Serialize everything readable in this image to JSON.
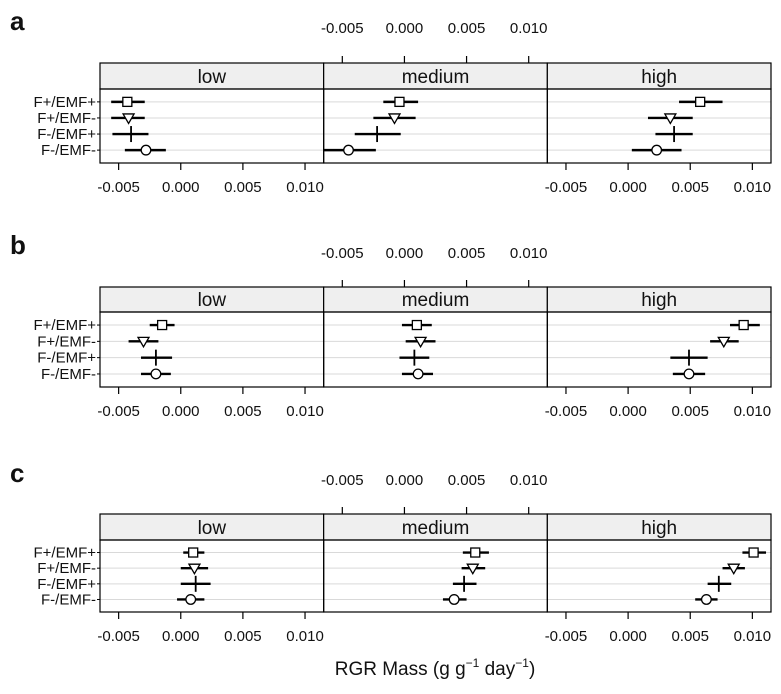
{
  "figure": {
    "xlabel": "RGR Mass (g g",
    "xlabel_sup1": "−1",
    "xlabel_mid": " day",
    "xlabel_sup2": "−1",
    "xlabel_end": ")",
    "colors": {
      "strip_bg": "#efefef",
      "frame": "#000000",
      "guide": "#d9d9d9",
      "mark": "#000000"
    }
  },
  "chart_data": [
    {
      "panel_label": "a",
      "type": "dotplot",
      "categories": [
        "F+/EMF+",
        "F+/EMF-",
        "F-/EMF+",
        "F-/EMF-"
      ],
      "symbols": [
        "square",
        "triangle-down",
        "plus",
        "circle"
      ],
      "xlim": [
        -0.0065,
        0.0115
      ],
      "ticks": [
        -0.005,
        0.0,
        0.005,
        0.01
      ],
      "tick_labels": [
        "-0.005",
        "0.000",
        "0.005",
        "0.010"
      ],
      "panels": [
        {
          "title": "low",
          "points": [
            {
              "category": "F+/EMF+",
              "value": -0.0043,
              "low": -0.0056,
              "high": -0.0029
            },
            {
              "category": "F+/EMF-",
              "value": -0.0042,
              "low": -0.0056,
              "high": -0.0029
            },
            {
              "category": "F-/EMF+",
              "value": -0.004,
              "low": -0.0055,
              "high": -0.0026
            },
            {
              "category": "F-/EMF-",
              "value": -0.0028,
              "low": -0.0045,
              "high": -0.0012
            }
          ]
        },
        {
          "title": "medium",
          "points": [
            {
              "category": "F+/EMF+",
              "value": -0.0004,
              "low": -0.0017,
              "high": 0.0011
            },
            {
              "category": "F+/EMF-",
              "value": -0.0008,
              "low": -0.0025,
              "high": 0.0009
            },
            {
              "category": "F-/EMF+",
              "value": -0.0022,
              "low": -0.004,
              "high": -0.0003
            },
            {
              "category": "F-/EMF-",
              "value": -0.0045,
              "low": -0.0065,
              "high": -0.0023
            }
          ]
        },
        {
          "title": "high",
          "points": [
            {
              "category": "F+/EMF+",
              "value": 0.0058,
              "low": 0.0041,
              "high": 0.0076
            },
            {
              "category": "F+/EMF-",
              "value": 0.0034,
              "low": 0.0016,
              "high": 0.0052
            },
            {
              "category": "F-/EMF+",
              "value": 0.0037,
              "low": 0.0022,
              "high": 0.0052
            },
            {
              "category": "F-/EMF-",
              "value": 0.0023,
              "low": 0.0003,
              "high": 0.0043
            }
          ]
        }
      ]
    },
    {
      "panel_label": "b",
      "type": "dotplot",
      "categories": [
        "F+/EMF+",
        "F+/EMF-",
        "F-/EMF+",
        "F-/EMF-"
      ],
      "symbols": [
        "square",
        "triangle-down",
        "plus",
        "circle"
      ],
      "xlim": [
        -0.0065,
        0.0115
      ],
      "ticks": [
        -0.005,
        0.0,
        0.005,
        0.01
      ],
      "tick_labels": [
        "-0.005",
        "0.000",
        "0.005",
        "0.010"
      ],
      "panels": [
        {
          "title": "low",
          "points": [
            {
              "category": "F+/EMF+",
              "value": -0.0015,
              "low": -0.0025,
              "high": -0.0005
            },
            {
              "category": "F+/EMF-",
              "value": -0.003,
              "low": -0.0042,
              "high": -0.0018
            },
            {
              "category": "F-/EMF+",
              "value": -0.002,
              "low": -0.0032,
              "high": -0.0007
            },
            {
              "category": "F-/EMF-",
              "value": -0.002,
              "low": -0.0032,
              "high": -0.0008
            }
          ]
        },
        {
          "title": "medium",
          "points": [
            {
              "category": "F+/EMF+",
              "value": 0.001,
              "low": -0.0002,
              "high": 0.0022
            },
            {
              "category": "F+/EMF-",
              "value": 0.0013,
              "low": 0.0001,
              "high": 0.0025
            },
            {
              "category": "F-/EMF+",
              "value": 0.0008,
              "low": -0.0004,
              "high": 0.002
            },
            {
              "category": "F-/EMF-",
              "value": 0.0011,
              "low": -0.0002,
              "high": 0.0023
            }
          ]
        },
        {
          "title": "high",
          "points": [
            {
              "category": "F+/EMF+",
              "value": 0.0093,
              "low": 0.0082,
              "high": 0.0106
            },
            {
              "category": "F+/EMF-",
              "value": 0.0077,
              "low": 0.0066,
              "high": 0.0089
            },
            {
              "category": "F-/EMF+",
              "value": 0.0049,
              "low": 0.0034,
              "high": 0.0064
            },
            {
              "category": "F-/EMF-",
              "value": 0.0049,
              "low": 0.0036,
              "high": 0.0062
            }
          ]
        }
      ]
    },
    {
      "panel_label": "c",
      "type": "dotplot",
      "categories": [
        "F+/EMF+",
        "F+/EMF-",
        "F-/EMF+",
        "F-/EMF-"
      ],
      "symbols": [
        "square",
        "triangle-down",
        "plus",
        "circle"
      ],
      "xlim": [
        -0.0065,
        0.0115
      ],
      "ticks": [
        -0.005,
        0.0,
        0.005,
        0.01
      ],
      "tick_labels": [
        "-0.005",
        "0.000",
        "0.005",
        "0.010"
      ],
      "panels": [
        {
          "title": "low",
          "points": [
            {
              "category": "F+/EMF+",
              "value": 0.001,
              "low": 0.0002,
              "high": 0.0019
            },
            {
              "category": "F+/EMF-",
              "value": 0.0011,
              "low": 0.0,
              "high": 0.0022
            },
            {
              "category": "F-/EMF+",
              "value": 0.0012,
              "low": 0.0,
              "high": 0.0024
            },
            {
              "category": "F-/EMF-",
              "value": 0.0008,
              "low": -0.0003,
              "high": 0.0019
            }
          ]
        },
        {
          "title": "medium",
          "points": [
            {
              "category": "F+/EMF+",
              "value": 0.0057,
              "low": 0.0047,
              "high": 0.0068
            },
            {
              "category": "F+/EMF-",
              "value": 0.0055,
              "low": 0.0046,
              "high": 0.0065
            },
            {
              "category": "F-/EMF+",
              "value": 0.0048,
              "low": 0.0039,
              "high": 0.0058
            },
            {
              "category": "F-/EMF-",
              "value": 0.004,
              "low": 0.0031,
              "high": 0.005
            }
          ]
        },
        {
          "title": "high",
          "points": [
            {
              "category": "F+/EMF+",
              "value": 0.0101,
              "low": 0.0092,
              "high": 0.0111
            },
            {
              "category": "F+/EMF-",
              "value": 0.0085,
              "low": 0.0076,
              "high": 0.0094
            },
            {
              "category": "F-/EMF+",
              "value": 0.0073,
              "low": 0.0064,
              "high": 0.0083
            },
            {
              "category": "F-/EMF-",
              "value": 0.0063,
              "low": 0.0054,
              "high": 0.0072
            }
          ]
        }
      ]
    }
  ]
}
